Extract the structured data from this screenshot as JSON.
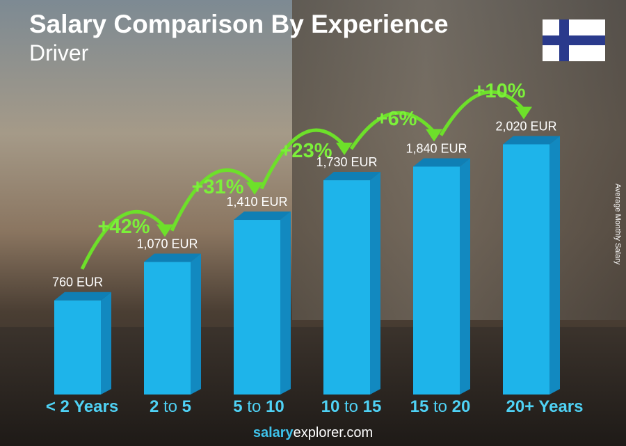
{
  "title": "Salary Comparison By Experience",
  "subtitle": "Driver",
  "footer": {
    "brand_bold": "salary",
    "brand_rest": "explorer",
    "tld": ".com"
  },
  "flag": "Finland",
  "colors": {
    "bar": "#1eb4ea",
    "bar_side": "#1289c0",
    "bar_top": "#0f7fb5",
    "arrow": "#6de02a",
    "label": "#4fd2f5"
  },
  "chart_data": {
    "type": "bar",
    "title": "Salary Comparison By Experience",
    "ylabel": "Average Monthly Salary",
    "categories": [
      [
        "< 2 Years"
      ],
      [
        "2",
        " to ",
        "5"
      ],
      [
        "5",
        " to ",
        "10"
      ],
      [
        "10",
        " to ",
        "15"
      ],
      [
        "15",
        " to ",
        "20"
      ],
      [
        "20+ Years"
      ]
    ],
    "values": [
      760,
      1070,
      1410,
      1730,
      1840,
      2020
    ],
    "value_labels": [
      "760 EUR",
      "1,070 EUR",
      "1,410 EUR",
      "1,730 EUR",
      "1,840 EUR",
      "2,020 EUR"
    ],
    "changes": [
      "+42%",
      "+31%",
      "+23%",
      "+6%",
      "+10%"
    ],
    "unit": "EUR",
    "grid": false
  }
}
